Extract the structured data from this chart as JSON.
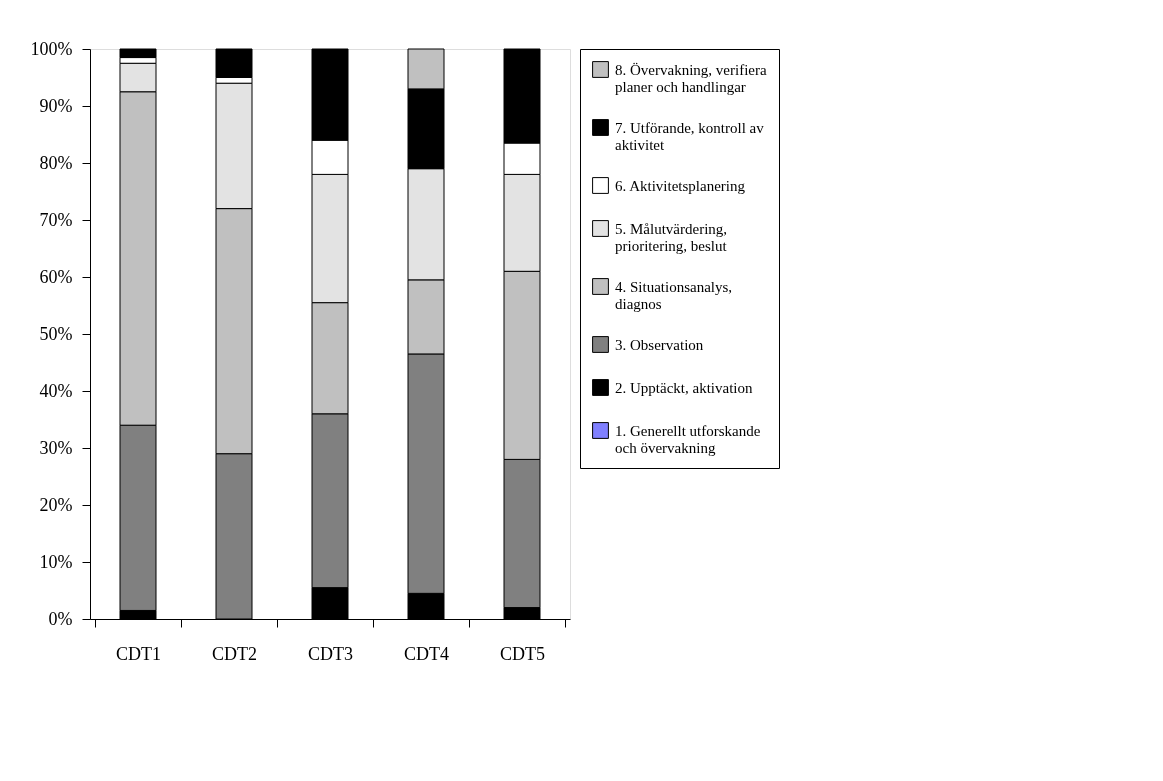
{
  "chart_data": {
    "type": "bar",
    "stacked": true,
    "categories": [
      "CDT1",
      "CDT2",
      "CDT3",
      "CDT4",
      "CDT5"
    ],
    "series": [
      {
        "name": "1. Generellt utforskande och övervakning",
        "color": "#8080ff",
        "values": [
          0,
          0,
          0,
          0,
          0
        ]
      },
      {
        "name": "2. Upptäckt, aktivation",
        "color": "#000000",
        "values": [
          1.5,
          0,
          5.5,
          4.5,
          2
        ]
      },
      {
        "name": "3. Observation",
        "color": "#808080",
        "values": [
          32.5,
          29,
          30.5,
          42,
          26
        ]
      },
      {
        "name": "4. Situationsanalys, diagnos",
        "color": "#c0c0c0",
        "values": [
          58.5,
          43,
          19.5,
          13,
          33
        ]
      },
      {
        "name": "5. Målutvärdering, prioritering, beslut",
        "color": "#e3e3e3",
        "values": [
          5,
          22,
          22.5,
          19.5,
          17
        ]
      },
      {
        "name": "6. Aktivitetsplanering",
        "color": "#ffffff",
        "values": [
          1,
          1,
          6,
          0,
          5.5
        ]
      },
      {
        "name": "7. Utförande, kontroll av aktivitet",
        "color": "#000000",
        "values": [
          1.5,
          5,
          16,
          14,
          16.5
        ]
      },
      {
        "name": "8. Övervakning, verifiera planer och handlingar",
        "color": "#c0c0c0",
        "values": [
          0,
          0,
          0,
          7,
          0
        ]
      }
    ],
    "ylim": [
      0,
      100
    ],
    "yticks": [
      {
        "value": 0,
        "label": "0%"
      },
      {
        "value": 10,
        "label": "10%"
      },
      {
        "value": 20,
        "label": "20%"
      },
      {
        "value": 30,
        "label": "30%"
      },
      {
        "value": 40,
        "label": "40%"
      },
      {
        "value": 50,
        "label": "50%"
      },
      {
        "value": 60,
        "label": "60%"
      },
      {
        "value": 70,
        "label": "70%"
      },
      {
        "value": 80,
        "label": "80%"
      },
      {
        "value": 90,
        "label": "90%"
      },
      {
        "value": 100,
        "label": "100%"
      }
    ],
    "grid": false,
    "legend": "right"
  }
}
